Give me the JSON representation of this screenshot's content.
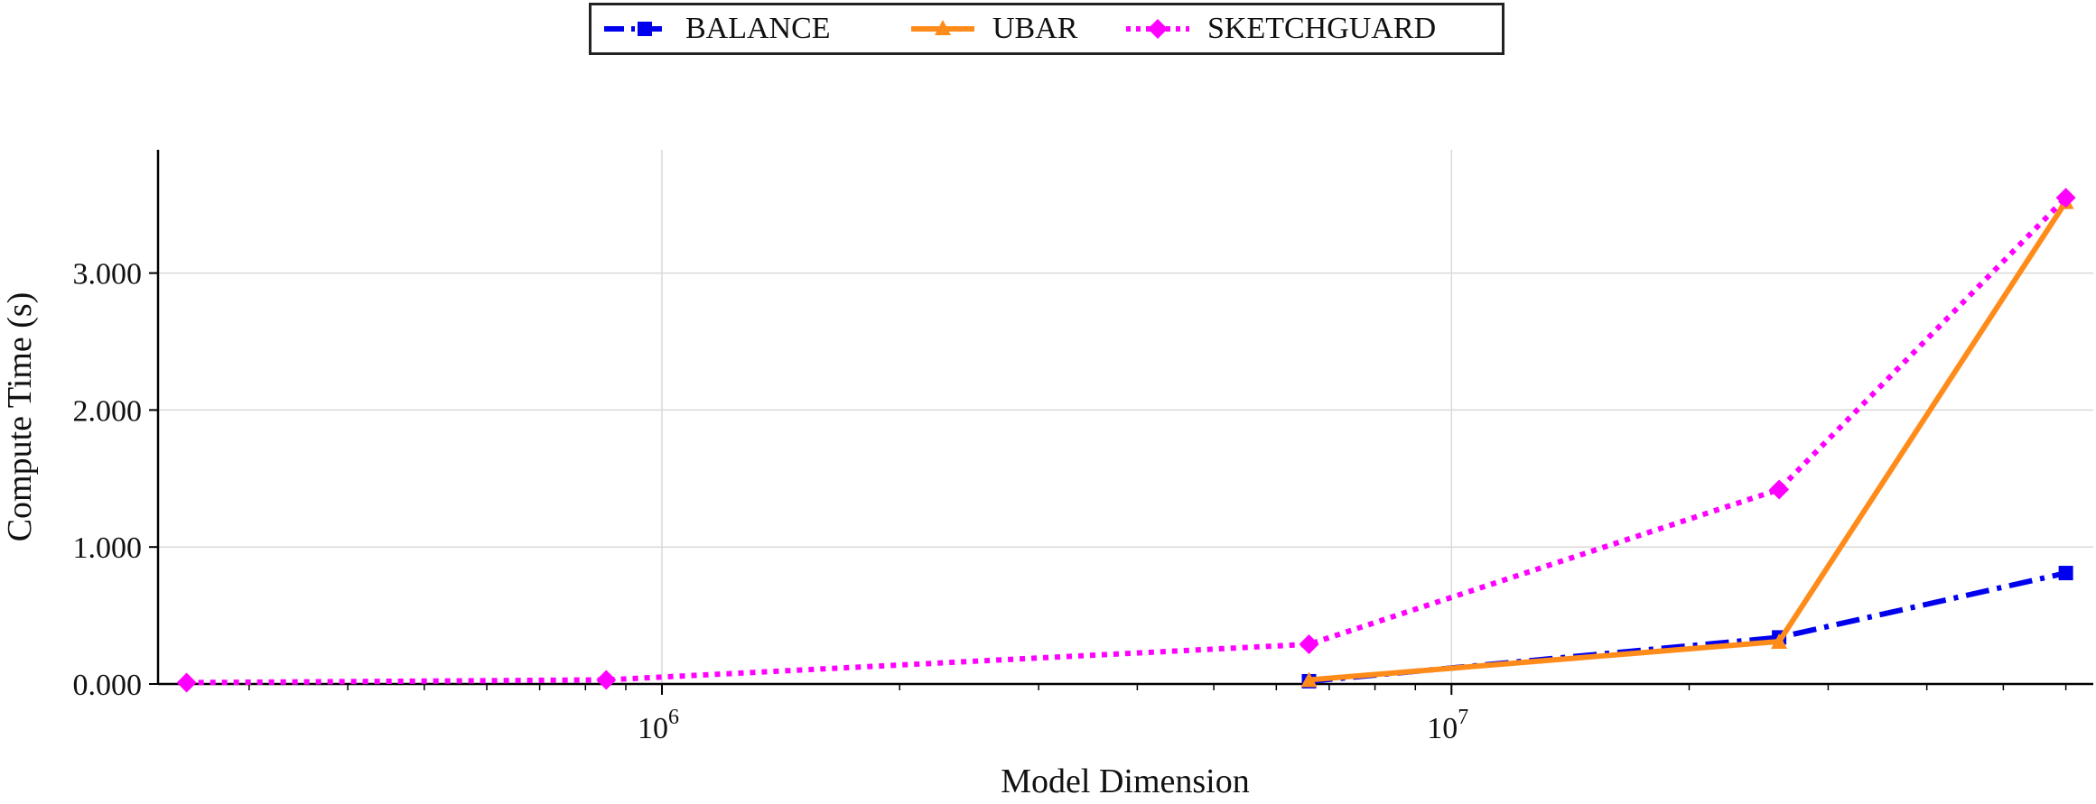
{
  "chart_data": {
    "type": "line",
    "xlabel": "Model Dimension",
    "ylabel": "Compute Time (s)",
    "xscale": "log",
    "xlim": [
      230000,
      65000000
    ],
    "ylim": [
      0,
      3.9
    ],
    "grid": true,
    "legend_position": "top-center",
    "x_tick_labels": [
      {
        "value": 1000000,
        "base": "10",
        "exp": "6"
      },
      {
        "value": 10000000,
        "base": "10",
        "exp": "7"
      }
    ],
    "y_ticks": [
      {
        "value": 0,
        "label": "0.000"
      },
      {
        "value": 1,
        "label": "1.000"
      },
      {
        "value": 2,
        "label": "2.000"
      },
      {
        "value": 3,
        "label": "3.000"
      }
    ],
    "series": [
      {
        "name": "BALANCE",
        "color": "#0000ee",
        "marker": "square",
        "line_style": "dashdot",
        "points": [
          [
            6600000,
            0.02
          ],
          [
            26000000,
            0.34
          ],
          [
            60000000,
            0.81
          ]
        ]
      },
      {
        "name": "UBAR",
        "color": "#ff8c1a",
        "marker": "triangle",
        "line_style": "solid",
        "points": [
          [
            6600000,
            0.03
          ],
          [
            26000000,
            0.31
          ],
          [
            60000000,
            3.52
          ]
        ]
      },
      {
        "name": "SKETCHGUARD",
        "color": "#ff00ff",
        "marker": "diamond",
        "line_style": "dotted",
        "points": [
          [
            250000,
            0.01
          ],
          [
            850000,
            0.03
          ],
          [
            6600000,
            0.29
          ],
          [
            26000000,
            1.42
          ],
          [
            60000000,
            3.55
          ]
        ]
      }
    ]
  }
}
